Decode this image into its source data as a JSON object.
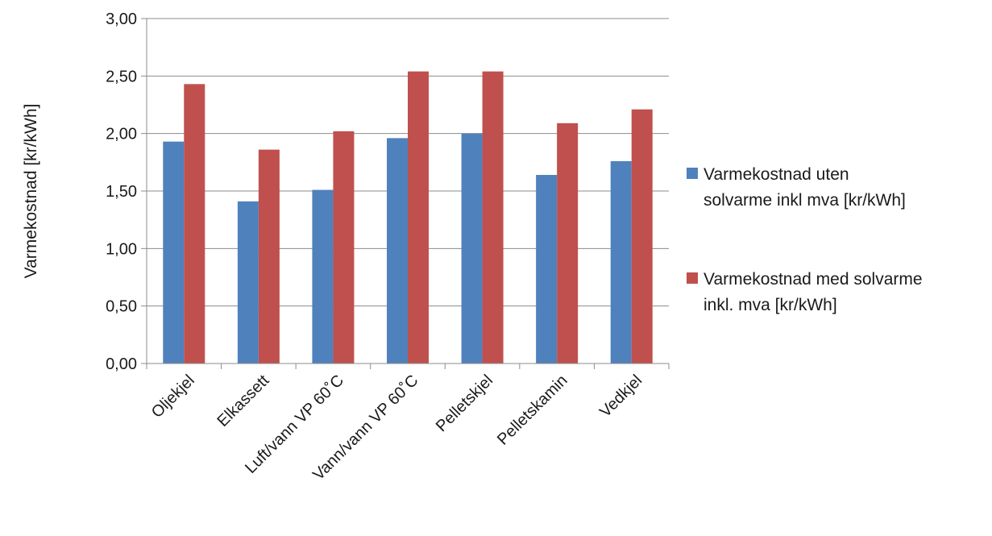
{
  "chart_data": {
    "type": "bar",
    "title": "",
    "xlabel": "",
    "ylabel": "Varmekostnad [kr/kWh]",
    "ylim": [
      0,
      3
    ],
    "yticks": [
      "0,00",
      "0,50",
      "1,00",
      "1,50",
      "2,00",
      "2,50",
      "3,00"
    ],
    "grid": true,
    "legend_position": "right",
    "categories": [
      "Oljekjel",
      "Elkassett",
      "Luft/vann VP 60˚C",
      "Vann/vann VP 60˚C",
      "Pelletskjel",
      "Pelletskamin",
      "Vedkjel"
    ],
    "series": [
      {
        "name": "Varmekostnad uten solvarme inkl mva [kr/kWh]",
        "legend_lines": [
          "Varmekostnad uten",
          "solvarme inkl mva [kr/kWh]"
        ],
        "color": "#4f81bd",
        "values": [
          1.93,
          1.41,
          1.51,
          1.96,
          2.0,
          1.64,
          1.76
        ]
      },
      {
        "name": "Varmekostnad med solvarme inkl. mva [kr/kWh]",
        "legend_lines": [
          "Varmekostnad med solvarme",
          "inkl. mva [kr/kWh]"
        ],
        "color": "#c0504d",
        "values": [
          2.43,
          1.86,
          2.02,
          2.54,
          2.54,
          2.09,
          2.21
        ]
      }
    ]
  }
}
